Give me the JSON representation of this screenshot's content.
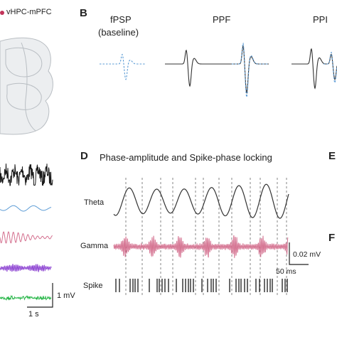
{
  "legend": {
    "label": "vHPC-mPFC",
    "color": "#c2345a"
  },
  "panels": {
    "B": "B",
    "D": "D",
    "E": "E",
    "F": "F"
  },
  "panel_b": {
    "fpsp_title": "fPSP",
    "fpsp_subtitle": "(baseline)",
    "ppf_title": "PPF",
    "ppi_title": "PPI"
  },
  "panel_c": {
    "scale_mv": "1 mV",
    "scale_s": "1 s"
  },
  "panel_d": {
    "title": "Phase-amplitude and Spike-phase locking",
    "theta_label": "Theta",
    "gamma_label": "Gamma",
    "spike_label": "Spike",
    "scale_mv": "0.02 mV",
    "scale_ms": "50 ms"
  },
  "colors": {
    "raw": "#1a1a1a",
    "blue": "#5b9bd5",
    "pink": "#d4708f",
    "purple": "#8a3fd1",
    "green": "#2db84d",
    "dark": "#333333",
    "dashed": "#666666"
  }
}
